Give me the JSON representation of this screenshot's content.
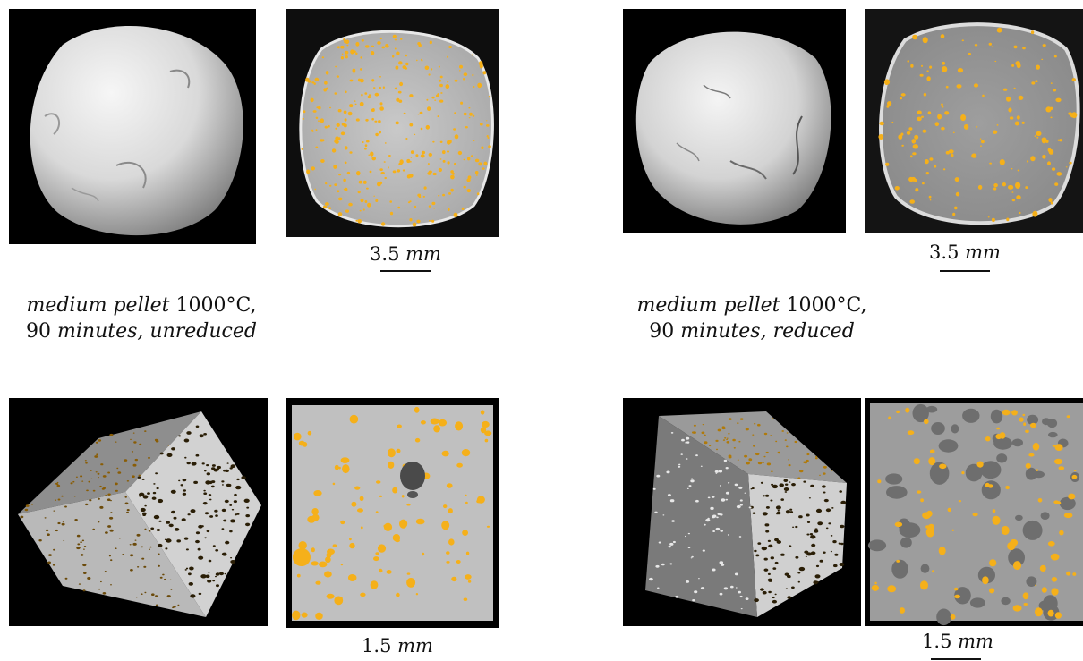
{
  "panels": {
    "top_left": {
      "scale": {
        "value": "3.5",
        "unit": "mm"
      },
      "caption": {
        "line1_italic": "medium pellet",
        "line1_value": "1000°C,",
        "line2_number": "90",
        "line2_italic": "minutes, unreduced"
      }
    },
    "top_right": {
      "scale": {
        "value": "3.5",
        "unit": "mm"
      },
      "caption": {
        "line1_italic": "medium pellet",
        "line1_value": "1000°C,",
        "line2_number": "90",
        "line2_italic": "minutes, reduced"
      }
    },
    "bottom_left": {
      "scale": {
        "value": "1.5",
        "unit": "mm"
      }
    },
    "bottom_right": {
      "scale": {
        "value": "1.5",
        "unit": "mm"
      }
    }
  },
  "colors": {
    "pore": "#f5b01a",
    "background": "#000000",
    "cross_section": "#bdbdbd",
    "dark_pore": "#2a1e06"
  }
}
